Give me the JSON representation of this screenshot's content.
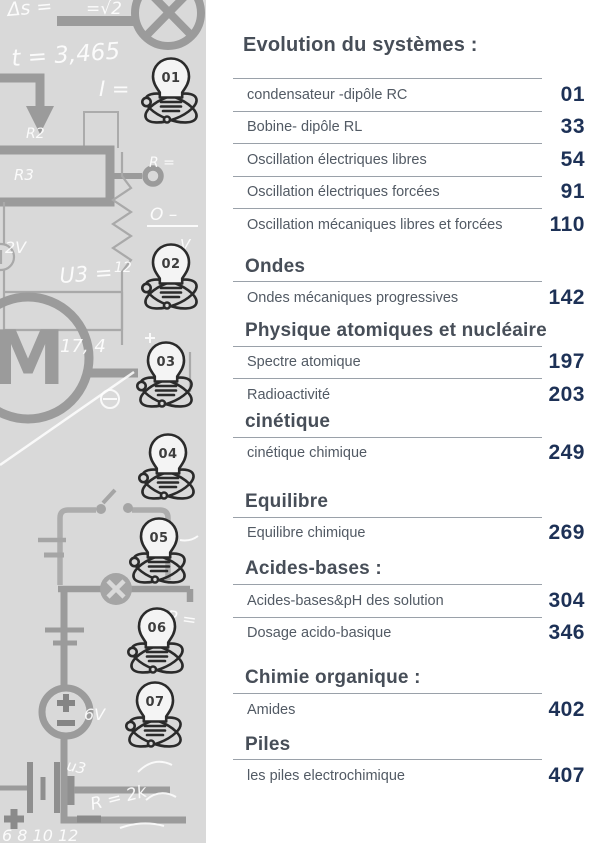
{
  "toc": {
    "sections": [
      {
        "title": "Evolution du systèmes :",
        "rows": [
          {
            "label": "condensateur -dipôle RC",
            "page": "01"
          },
          {
            "label": "Bobine- dipôle RL",
            "page": "33"
          },
          {
            "label": "Oscillation électriques libres",
            "page": "54"
          },
          {
            "label": "Oscillation électriques forcées",
            "page": "91"
          },
          {
            "label": "Oscillation mécaniques libres et forcées",
            "page": "110"
          }
        ]
      },
      {
        "title": "Ondes",
        "rows": [
          {
            "label": "Ondes mécaniques progressives",
            "page": "142"
          }
        ]
      },
      {
        "title": "Physique atomiques et nucléaire",
        "rows": [
          {
            "label": "Spectre atomique",
            "page": "197"
          },
          {
            "label": "Radioactivité",
            "page": "203"
          }
        ]
      },
      {
        "title": "cinétique",
        "rows": [
          {
            "label": "cinétique chimique",
            "page": "249"
          }
        ]
      },
      {
        "title": "Equilibre",
        "rows": [
          {
            "label": "Equilibre chimique",
            "page": "269"
          }
        ]
      },
      {
        "title": "Acides-bases :",
        "rows": [
          {
            "label": "Acides-bases&pH des solution",
            "page": "304"
          },
          {
            "label": "Dosage acido-basique",
            "page": "346"
          }
        ]
      },
      {
        "title": "Chimie organique :",
        "rows": [
          {
            "label": "Amides",
            "page": "402"
          }
        ]
      },
      {
        "title": "Piles",
        "rows": [
          {
            "label": "les piles electrochimique",
            "page": "407"
          }
        ]
      }
    ]
  },
  "sidebar": {
    "bulb_numbers": [
      "01",
      "02",
      "03",
      "04",
      "05",
      "06",
      "07"
    ],
    "motor_label": "M",
    "formulas": {
      "delta": "Δs =",
      "sqrt": "=√2",
      "time": "t = 3,465",
      "current": "I =",
      "r2": "R2",
      "r3": "R3",
      "r_eq": "R =",
      "o_dash": "O –",
      "volt": "V",
      "v2": "2V",
      "u3": "U3 =",
      "twelve": "12",
      "seventeen": "17, 4",
      "p_eq": "P =",
      "v6": "6V",
      "u3b": "u3",
      "r_bottom": "R = 2k",
      "ticks": "6  8  10  12"
    }
  },
  "colors": {
    "panel_bg": "#d9d9d9",
    "sketch_gray": "#9b9b9b",
    "icon_stroke": "#2b2b2b",
    "heading_text": "#474e58",
    "row_text": "#525a64",
    "page_number": "#1d3156",
    "rule": "#9aa1a9"
  }
}
